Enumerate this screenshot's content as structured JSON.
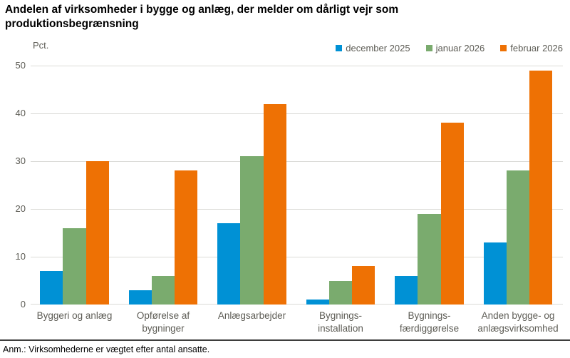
{
  "chart_data": {
    "type": "bar",
    "title": "Andelen af virksomheder i bygge og anlæg, der melder om dårligt vejr som produktionsbegrænsning",
    "ylabel": "Pct.",
    "ylim": [
      0,
      50
    ],
    "yticks": [
      0,
      10,
      20,
      30,
      40,
      50
    ],
    "grid": true,
    "legend_position": "top-right",
    "categories": [
      "Byggeri og anlæg",
      "Opførelse af\nbygninger",
      "Anlægsarbejder",
      "Bygnings-\ninstallation",
      "Bygnings-\nfærdiggørelse",
      "Anden bygge- og\nanlægsvirksomhed"
    ],
    "series": [
      {
        "name": "december 2025",
        "color": "#0091d5",
        "values": [
          7,
          3,
          17,
          1,
          6,
          13
        ]
      },
      {
        "name": "januar 2026",
        "color": "#7aab6e",
        "values": [
          16,
          6,
          31,
          5,
          19,
          28
        ]
      },
      {
        "name": "februar 2026",
        "color": "#ee7104",
        "values": [
          30,
          28,
          42,
          8,
          38,
          49
        ]
      }
    ],
    "note": "Anm.: Virksomhederne er vægtet efter antal ansatte."
  }
}
